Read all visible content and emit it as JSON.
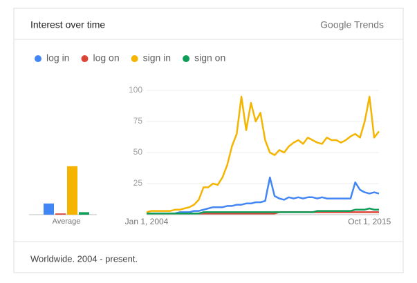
{
  "header": {
    "title": "Interest over time",
    "brand": "Google Trends"
  },
  "footer": {
    "text": "Worldwide. 2004 - present."
  },
  "chart_data": [
    {
      "type": "bar",
      "categories": [
        "Average"
      ],
      "ylim": [
        0,
        100
      ],
      "series": [
        {
          "color": "#4285f4",
          "values": [
            9
          ]
        },
        {
          "color": "#db4437",
          "values": [
            1
          ]
        },
        {
          "color": "#f4b400",
          "values": [
            39
          ]
        },
        {
          "color": "#0f9d58",
          "values": [
            2
          ]
        }
      ]
    },
    {
      "type": "line",
      "ylim": [
        0,
        100
      ],
      "yticks": [
        25,
        50,
        75,
        100
      ],
      "grid": true,
      "categories": [
        "Jan 1, 2004",
        null,
        null,
        null,
        null,
        null,
        null,
        null,
        null,
        null,
        null,
        null,
        null,
        null,
        null,
        null,
        null,
        null,
        null,
        null,
        null,
        null,
        null,
        null,
        null,
        null,
        null,
        null,
        null,
        null,
        null,
        null,
        null,
        null,
        null,
        null,
        null,
        null,
        null,
        null,
        null,
        null,
        null,
        null,
        null,
        null,
        null,
        "Oct 1, 2015",
        null,
        null
      ],
      "series": [
        {
          "name": "log in",
          "color": "#4285f4",
          "values": [
            1,
            1,
            1,
            1,
            1,
            1,
            1,
            2,
            2,
            2,
            3,
            3,
            4,
            5,
            6,
            6,
            6,
            7,
            7,
            8,
            8,
            9,
            9,
            10,
            10,
            11,
            30,
            15,
            13,
            12,
            14,
            13,
            14,
            13,
            14,
            14,
            13,
            14,
            13,
            13,
            13,
            13,
            13,
            13,
            26,
            20,
            18,
            17,
            18,
            17
          ]
        },
        {
          "name": "log on",
          "color": "#db4437",
          "values": [
            1,
            1,
            1,
            1,
            1,
            1,
            1,
            1,
            1,
            1,
            1,
            1,
            1,
            1,
            1,
            1,
            1,
            1,
            1,
            1,
            1,
            1,
            1,
            1,
            1,
            1,
            1,
            1,
            2,
            2,
            2,
            2,
            2,
            2,
            2,
            2,
            2,
            2,
            2,
            2,
            2,
            2,
            2,
            2,
            2,
            2,
            2,
            2,
            2,
            2
          ]
        },
        {
          "name": "sign in",
          "color": "#f4b400",
          "values": [
            2,
            3,
            3,
            3,
            3,
            3,
            4,
            4,
            5,
            6,
            8,
            12,
            22,
            22,
            25,
            24,
            30,
            40,
            55,
            65,
            95,
            68,
            90,
            75,
            82,
            60,
            50,
            48,
            52,
            50,
            55,
            58,
            60,
            57,
            62,
            60,
            58,
            57,
            62,
            60,
            60,
            58,
            60,
            63,
            65,
            62,
            75,
            95,
            62,
            67
          ]
        },
        {
          "name": "sign on",
          "color": "#0f9d58",
          "values": [
            1,
            1,
            1,
            1,
            1,
            1,
            1,
            1,
            1,
            1,
            1,
            1,
            2,
            2,
            2,
            2,
            2,
            2,
            2,
            2,
            2,
            2,
            2,
            2,
            2,
            2,
            2,
            2,
            2,
            2,
            2,
            2,
            2,
            2,
            2,
            2,
            3,
            3,
            3,
            3,
            3,
            3,
            3,
            3,
            4,
            4,
            4,
            5,
            4,
            4
          ]
        }
      ]
    }
  ]
}
